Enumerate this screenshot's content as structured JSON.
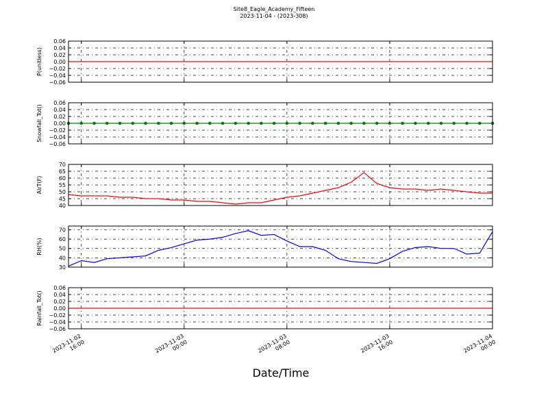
{
  "figure": {
    "title": "Site8_Eagle_Academy_Fifteen",
    "subtitle": "2023-11-04 - (2023-308)"
  },
  "xaxis": {
    "label": "Date/Time",
    "lim": [
      "2023-11-02 15:00",
      "2023-11-04 00:00"
    ],
    "ticks": [
      {
        "value": "2023-11-02 16:00",
        "label": "2023-11-02\n16:00"
      },
      {
        "value": "2023-11-03 00:00",
        "label": "2023-11-03\n00:00"
      },
      {
        "value": "2023-11-03 08:00",
        "label": "2023-11-03\n08:00"
      },
      {
        "value": "2023-11-03 16:00",
        "label": "2023-11-03\n16:00"
      },
      {
        "value": "2023-11-04 00:00",
        "label": "2023-11-04\n00:00"
      }
    ]
  },
  "x": [
    "2023-11-02 15:00",
    "2023-11-02 16:00",
    "2023-11-02 17:00",
    "2023-11-02 18:00",
    "2023-11-02 19:00",
    "2023-11-02 20:00",
    "2023-11-02 21:00",
    "2023-11-02 22:00",
    "2023-11-02 23:00",
    "2023-11-03 00:00",
    "2023-11-03 01:00",
    "2023-11-03 02:00",
    "2023-11-03 03:00",
    "2023-11-03 04:00",
    "2023-11-03 05:00",
    "2023-11-03 06:00",
    "2023-11-03 07:00",
    "2023-11-03 08:00",
    "2023-11-03 09:00",
    "2023-11-03 10:00",
    "2023-11-03 11:00",
    "2023-11-03 12:00",
    "2023-11-03 13:00",
    "2023-11-03 14:00",
    "2023-11-03 15:00",
    "2023-11-03 16:00",
    "2023-11-03 17:00",
    "2023-11-03 18:00",
    "2023-11-03 19:00",
    "2023-11-03 20:00",
    "2023-11-03 21:00",
    "2023-11-03 22:00",
    "2023-11-03 23:00",
    "2023-11-04 00:00"
  ],
  "chart_data": [
    {
      "type": "line",
      "ylabel": "P(unitless)",
      "color": "#ff0000",
      "marker": false,
      "ylim": [
        -0.06,
        0.06
      ],
      "yticks": [
        0.06,
        0.04,
        0.02,
        {
          "value": 0,
          "label": "0.00"
        },
        {
          "value": -0.02,
          "label": "−0.02"
        },
        {
          "value": -0.04,
          "label": "−0.04"
        },
        {
          "value": -0.06,
          "label": "−0.06"
        }
      ],
      "values": [
        0,
        0,
        0,
        0,
        0,
        0,
        0,
        0,
        0,
        0,
        0,
        0,
        0,
        0,
        0,
        0,
        0,
        0,
        0,
        0,
        0,
        0,
        0,
        0,
        0,
        0,
        0,
        0,
        0,
        0,
        0,
        0,
        0,
        0
      ]
    },
    {
      "type": "line",
      "ylabel": "Snowfall_Tot()",
      "color": "#008000",
      "marker": true,
      "ylim": [
        -0.06,
        0.06
      ],
      "yticks": [
        0.06,
        0.04,
        0.02,
        {
          "value": 0,
          "label": "0.00"
        },
        {
          "value": -0.02,
          "label": "−0.02"
        },
        {
          "value": -0.04,
          "label": "−0.04"
        },
        {
          "value": -0.06,
          "label": "−0.06"
        }
      ],
      "values": [
        0,
        0,
        0,
        0,
        0,
        0,
        0,
        0,
        0,
        0,
        0,
        0,
        0,
        0,
        0,
        0,
        0,
        0,
        0,
        0,
        0,
        0,
        0,
        0,
        0,
        0,
        0,
        0,
        0,
        0,
        0,
        0,
        0,
        0
      ]
    },
    {
      "type": "line",
      "ylabel": "AirT(F)",
      "color": "#ff0000",
      "marker": false,
      "ylim": [
        40,
        70
      ],
      "yticks": [
        70,
        65,
        60,
        55,
        50,
        45,
        40
      ],
      "values": [
        48,
        47,
        47,
        47,
        46,
        46,
        45,
        45,
        44,
        44,
        43,
        43,
        42,
        41,
        42,
        42,
        44,
        46,
        47,
        49,
        51,
        53,
        57,
        64,
        56,
        53,
        52,
        52,
        51,
        52,
        51,
        50,
        49,
        49
      ]
    },
    {
      "type": "line",
      "ylabel": "RH(%)",
      "color": "#0000ff",
      "marker": false,
      "ylim": [
        30,
        74
      ],
      "yticks": [
        70,
        60,
        50,
        40,
        30
      ],
      "values": [
        31,
        37,
        35,
        39,
        40,
        41,
        42,
        48,
        51,
        55,
        59,
        60,
        62,
        66,
        69,
        64,
        65,
        58,
        52,
        52,
        48,
        39,
        36,
        35,
        34,
        39,
        47,
        51,
        52,
        50,
        50,
        44,
        45,
        68
      ]
    },
    {
      "type": "line",
      "ylabel": "Rainfall_Tot()",
      "color": "#ff0000",
      "marker": false,
      "ylim": [
        -0.06,
        0.06
      ],
      "yticks": [
        0.06,
        0.04,
        0.02,
        {
          "value": 0,
          "label": "0.00"
        },
        {
          "value": -0.02,
          "label": "−0.02"
        },
        {
          "value": -0.04,
          "label": "−0.04"
        },
        {
          "value": -0.06,
          "label": "−0.06"
        }
      ],
      "values": [
        0,
        0,
        0,
        0,
        0,
        0,
        0,
        0,
        0,
        0,
        0,
        0,
        0,
        0,
        0,
        0,
        0,
        0,
        0,
        0,
        0,
        0,
        0,
        0,
        0,
        0,
        0,
        0,
        0,
        0,
        0,
        0,
        0,
        0
      ]
    }
  ]
}
